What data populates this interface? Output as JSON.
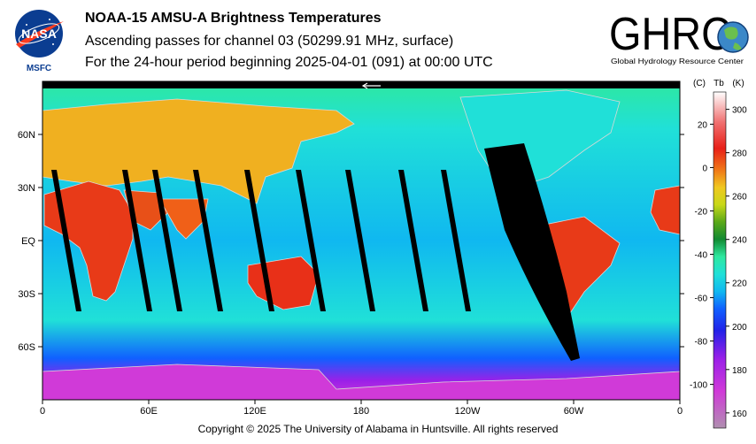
{
  "header": {
    "title": "NOAA-15 AMSU-A Brightness Temperatures",
    "subtitle": "Ascending passes for channel 03 (50299.91 MHz, surface)",
    "period": "For the 24-hour period beginning 2025-04-01 (091) at 00:00 UTC"
  },
  "logos": {
    "nasa_text": "NASA",
    "nasa_sub": "MSFC",
    "ghrc_text": "GHRC",
    "ghrc_sub": "Global Hydrology Resource Center"
  },
  "footer": {
    "copyright": "Copyright © 2025 The University of Alabama in Huntsville.  All rights reserved"
  },
  "colors": {
    "nasa_blue": "#0b3d91",
    "nasa_red": "#fc3d21",
    "no_data": "#000000",
    "coastline": "#d8d8d8"
  },
  "chart_data": {
    "type": "heatmap",
    "x_ticks": [
      {
        "lon": 0,
        "label": "0"
      },
      {
        "lon": 60,
        "label": "60E"
      },
      {
        "lon": 120,
        "label": "120E"
      },
      {
        "lon": 180,
        "label": "180"
      },
      {
        "lon": 240,
        "label": "120W"
      },
      {
        "lon": 300,
        "label": "60W"
      },
      {
        "lon": 360,
        "label": "0"
      }
    ],
    "y_ticks": [
      {
        "lat": 60,
        "label": "60N"
      },
      {
        "lat": 30,
        "label": "30N"
      },
      {
        "lat": 0,
        "label": "EQ"
      },
      {
        "lat": -30,
        "label": "30S"
      },
      {
        "lat": -60,
        "label": "60S"
      }
    ],
    "lon_range": [
      0,
      360
    ],
    "lat_range": [
      -90,
      90
    ],
    "colorbar": {
      "label_c": "(C)",
      "label_tb": "Tb",
      "label_k": "(K)",
      "range_k": [
        153,
        308
      ],
      "c_ticks": [
        "20",
        "0",
        "-20",
        "-40",
        "-60",
        "-80",
        "-100"
      ],
      "c_tick_values": [
        20,
        0,
        -20,
        -40,
        -60,
        -80,
        -100
      ],
      "k_ticks": [
        "300",
        "280",
        "260",
        "240",
        "220",
        "200",
        "180",
        "160"
      ],
      "k_tick_values": [
        300,
        280,
        260,
        240,
        220,
        200,
        180,
        160
      ],
      "stops": [
        {
          "k": 153,
          "color": "#b090b0"
        },
        {
          "k": 170,
          "color": "#d03ad8"
        },
        {
          "k": 185,
          "color": "#9a20e8"
        },
        {
          "k": 198,
          "color": "#2222e8"
        },
        {
          "k": 208,
          "color": "#1060ff"
        },
        {
          "k": 216,
          "color": "#10b8f0"
        },
        {
          "k": 224,
          "color": "#20e0d8"
        },
        {
          "k": 232,
          "color": "#2ee8a0"
        },
        {
          "k": 240,
          "color": "#128a32"
        },
        {
          "k": 248,
          "color": "#5aa818"
        },
        {
          "k": 256,
          "color": "#c8d818"
        },
        {
          "k": 264,
          "color": "#f0c820"
        },
        {
          "k": 272,
          "color": "#f07818"
        },
        {
          "k": 282,
          "color": "#e82018"
        },
        {
          "k": 294,
          "color": "#f07070"
        },
        {
          "k": 308,
          "color": "#ffffff"
        }
      ]
    },
    "gap_swaths_lon": [
      5,
      45,
      62,
      85,
      114,
      143,
      171,
      201,
      225
    ],
    "date_line_arrow_lon": 180
  }
}
